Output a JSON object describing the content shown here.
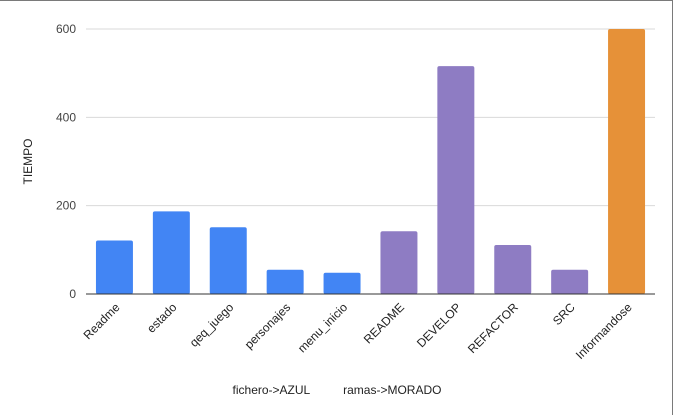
{
  "chart_data": {
    "type": "bar",
    "title": "",
    "xlabel": "fichero->AZUL          ramas->MORADO",
    "ylabel": "TIEMPO",
    "ylim": [
      0,
      600
    ],
    "yticks": [
      0,
      200,
      400,
      600
    ],
    "grid": true,
    "categories": [
      "Readme",
      "estado",
      "qeq_juego",
      "personajes",
      "menu_inicio",
      "README",
      "DEVELOP",
      "REFACTOR",
      "SRC",
      "Informandose"
    ],
    "values": [
      121,
      187,
      151,
      55,
      48,
      142,
      516,
      111,
      55,
      600
    ],
    "bar_colors": [
      "#4285f4",
      "#4285f4",
      "#4285f4",
      "#4285f4",
      "#4285f4",
      "#8e7cc3",
      "#8e7cc3",
      "#8e7cc3",
      "#8e7cc3",
      "#e69138"
    ]
  }
}
